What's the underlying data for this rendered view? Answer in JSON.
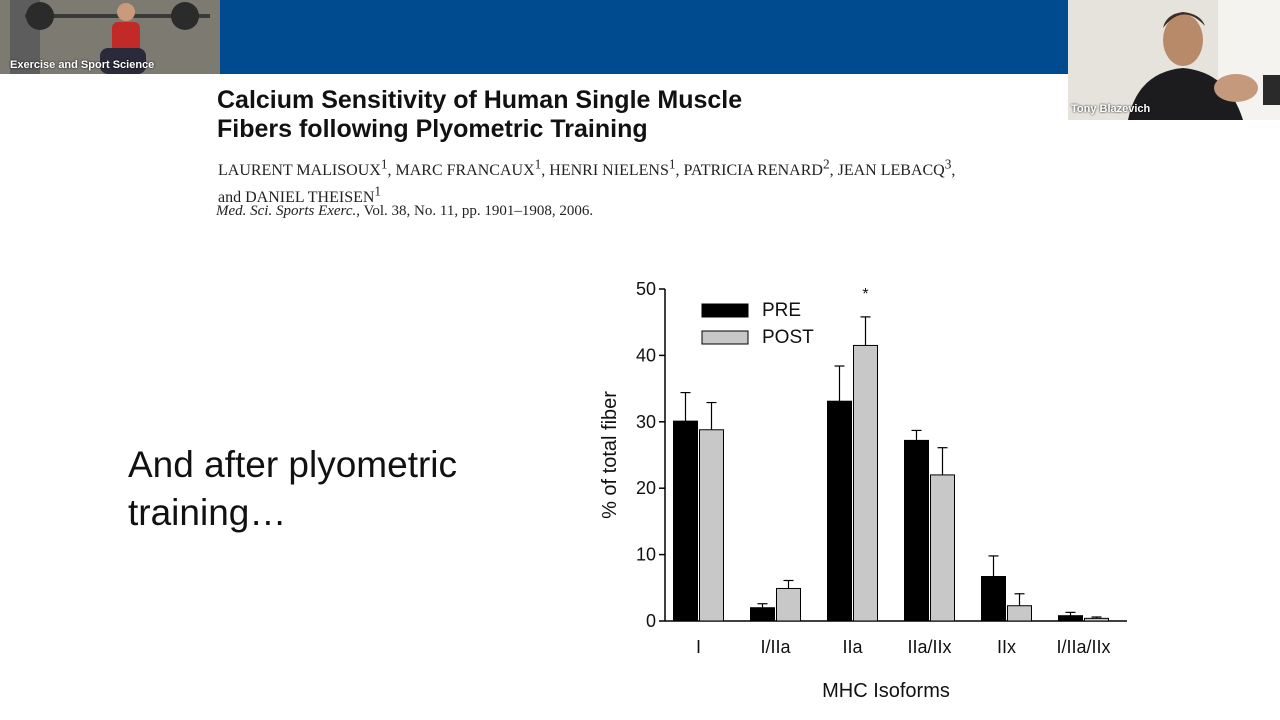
{
  "participants": {
    "left": {
      "name": "Exercise and Sport Science"
    },
    "right": {
      "name": "Tony Blazevich"
    }
  },
  "paper": {
    "title_line1": "Calcium Sensitivity of Human Single Muscle",
    "title_line2": "Fibers following Plyometric Training",
    "authors": [
      {
        "name": "LAURENT MALISOUX",
        "sup": "1",
        "sep": ", "
      },
      {
        "name": "MARC FRANCAUX",
        "sup": "1",
        "sep": ", "
      },
      {
        "name": "HENRI NIELENS",
        "sup": "1",
        "sep": ", "
      },
      {
        "name": "PATRICIA RENARD",
        "sup": "2",
        "sep": ", "
      },
      {
        "name": "JEAN LEBACQ",
        "sup": "3",
        "sep": ", "
      },
      {
        "name": "and DANIEL THEISEN",
        "sup": "1",
        "sep": ""
      }
    ],
    "journal": "Med. Sci. Sports Exerc.",
    "citation_rest": ", Vol. 38, No. 11, pp. 1901–1908, 2006."
  },
  "slide_text": {
    "line1": "And after plyometric",
    "line2": "training…"
  },
  "chart_data": {
    "type": "bar",
    "categories": [
      "I",
      "I/IIa",
      "IIa",
      "IIa/IIx",
      "IIx",
      "I/IIa/IIx"
    ],
    "series": [
      {
        "name": "PRE",
        "color": "#000000",
        "values": [
          30.1,
          2.0,
          33.1,
          27.2,
          6.7,
          0.8
        ],
        "errors": [
          4.3,
          0.6,
          5.3,
          1.5,
          3.1,
          0.5
        ]
      },
      {
        "name": "POST",
        "color": "#c8c8c8",
        "values": [
          28.8,
          4.9,
          41.5,
          22.0,
          2.3,
          0.4
        ],
        "errors": [
          4.1,
          1.2,
          4.3,
          4.1,
          1.8,
          0.2
        ]
      }
    ],
    "ylim": [
      0,
      50
    ],
    "yticks": [
      0,
      10,
      20,
      30,
      40,
      50
    ],
    "ylabel": "% of total fiber",
    "xlabel": "MHC Isoforms",
    "legend_position": "top-left",
    "annotation": {
      "text": "*",
      "category": "IIa"
    }
  }
}
